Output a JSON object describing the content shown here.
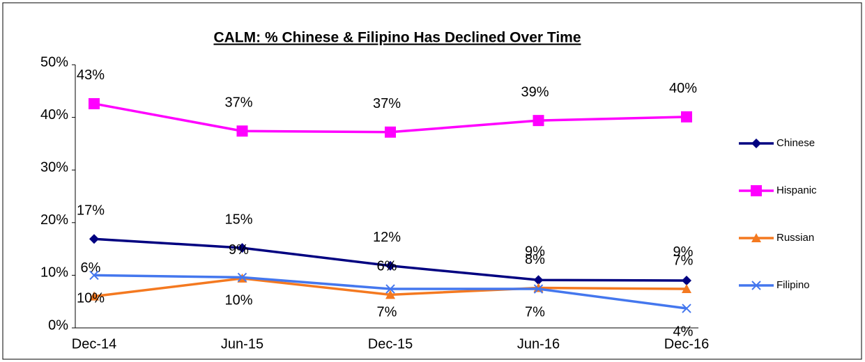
{
  "chart_data": {
    "type": "line",
    "title": "CALM: % Chinese & Filipino Has Declined Over Time",
    "categories": [
      "Dec-14",
      "Jun-15",
      "Dec-15",
      "Jun-16",
      "Dec-16"
    ],
    "series": [
      {
        "name": "Chinese",
        "color": "#000080",
        "marker": "diamond",
        "label_side": "above",
        "values": [
          16.9,
          15.2,
          11.8,
          9.1,
          9.0
        ],
        "value_labels": [
          "17%",
          "15%",
          "12%",
          "9%",
          "9%"
        ]
      },
      {
        "name": "Hispanic",
        "color": "#ff00ff",
        "marker": "square",
        "label_side": "above",
        "values": [
          42.6,
          37.4,
          37.2,
          39.4,
          40.1
        ],
        "value_labels": [
          "43%",
          "37%",
          "37%",
          "39%",
          "40%"
        ]
      },
      {
        "name": "Russian",
        "color": "#f47920",
        "marker": "triangle",
        "label_side": "above",
        "values": [
          6.0,
          9.4,
          6.3,
          7.6,
          7.4
        ],
        "value_labels": [
          "6%",
          "9%",
          "6%",
          "8%",
          "7%"
        ]
      },
      {
        "name": "Filipino",
        "color": "#4477ee",
        "marker": "x",
        "label_side": "below",
        "values": [
          10.0,
          9.6,
          7.4,
          7.4,
          3.7
        ],
        "value_labels": [
          "10%",
          "10%",
          "7%",
          "7%",
          "4%"
        ]
      }
    ],
    "ylim": [
      0,
      50
    ],
    "yticks": [
      {
        "value": 0,
        "label": "0%"
      },
      {
        "value": 10,
        "label": "10%"
      },
      {
        "value": 20,
        "label": "20%"
      },
      {
        "value": 30,
        "label": "30%"
      },
      {
        "value": 40,
        "label": "40%"
      },
      {
        "value": 50,
        "label": "50%"
      }
    ],
    "grid": false,
    "legend": "right"
  }
}
